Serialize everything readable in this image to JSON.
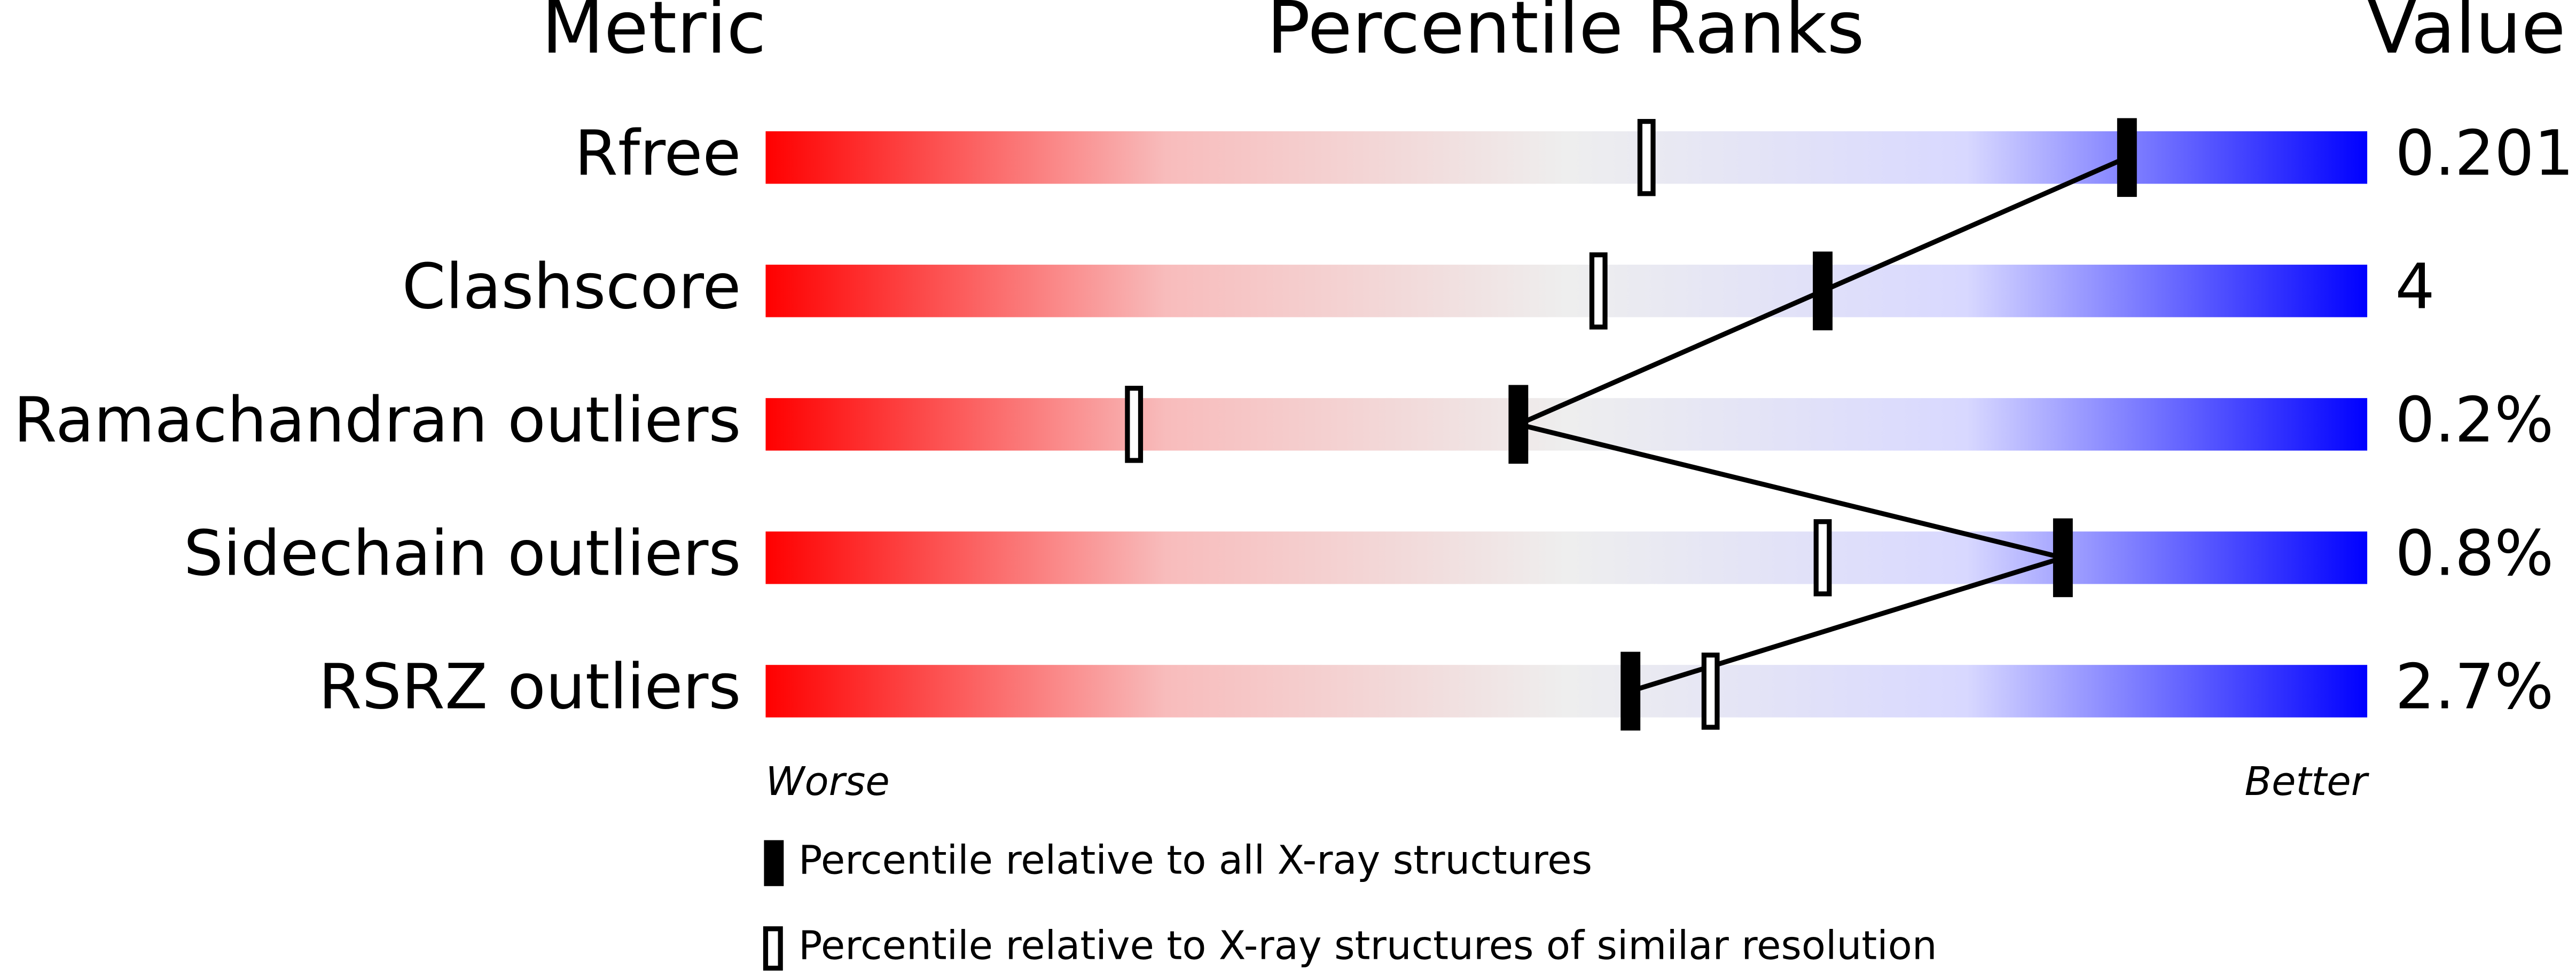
{
  "chart_data": {
    "type": "slider",
    "title": "Percentile Ranks",
    "metric_header": "Metric",
    "value_header": "Value",
    "categories": [
      "Rfree",
      "Clashscore",
      "Ramachandran outliers",
      "Sidechain outliers",
      "RSRZ outliers"
    ],
    "metric_values": [
      "0.201",
      "4",
      "0.2%",
      "0.8%",
      "2.7%"
    ],
    "xlim": [
      0,
      100
    ],
    "x_low_label": "Worse",
    "x_high_label": "Better",
    "series": [
      {
        "name": "Percentile relative to all X-ray structures",
        "color": "#000000",
        "style": "filled",
        "values": [
          85,
          66,
          47,
          81,
          54
        ]
      },
      {
        "name": "Percentile relative to X-ray structures of similar resolution",
        "color": "#000000",
        "style": "open",
        "values": [
          55,
          52,
          23,
          66,
          59
        ]
      }
    ],
    "gradient": [
      "#ff0000",
      "#f8bcbc",
      "#eeeeee",
      "#d8d8ff",
      "#0000ff"
    ]
  }
}
